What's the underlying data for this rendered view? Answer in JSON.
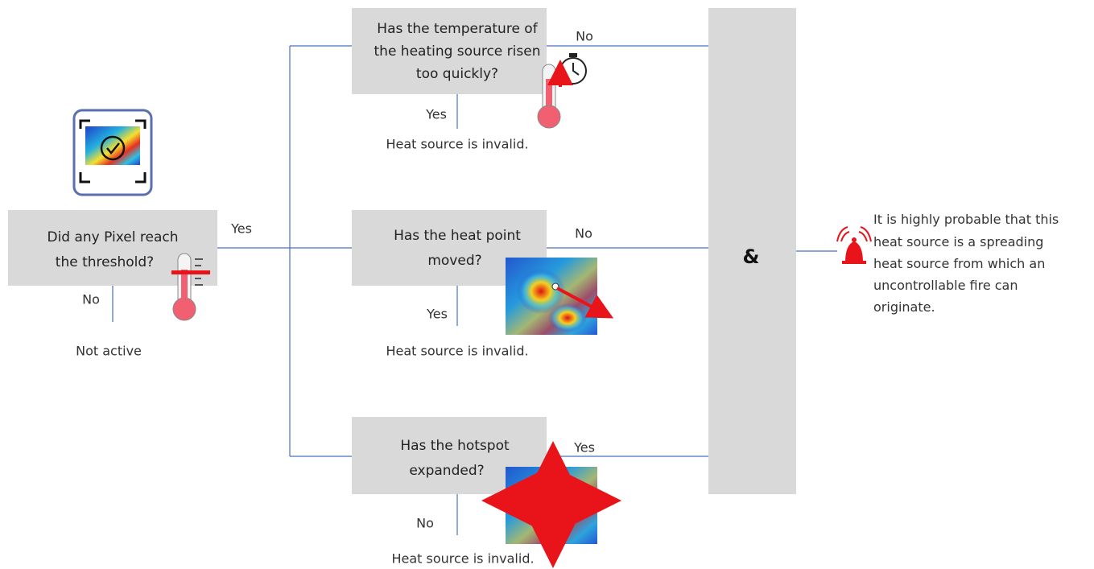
{
  "start": {
    "lines": [
      "Did any Pixel reach",
      "the threshold?"
    ],
    "yes": "Yes",
    "no": "No",
    "no_result": "Not active"
  },
  "checks": [
    {
      "lines": [
        "Has the temperature of",
        "the heating source risen",
        "too quickly?"
      ],
      "down": "Yes",
      "down_result": "Heat source is invalid.",
      "right": "No"
    },
    {
      "lines": [
        "Has the heat point",
        "moved?"
      ],
      "down": "Yes",
      "down_result": "Heat source is invalid.",
      "right": "No"
    },
    {
      "lines": [
        "Has the hotspot",
        "expanded?"
      ],
      "down": "No",
      "down_result": "Heat source is invalid.",
      "right": "Yes"
    }
  ],
  "and_gate": {
    "label": "&"
  },
  "result": {
    "lines": [
      "It is highly probable that this",
      "heat source is a spreading",
      "heat source from which an",
      "uncontrollable fire can",
      "originate."
    ]
  }
}
